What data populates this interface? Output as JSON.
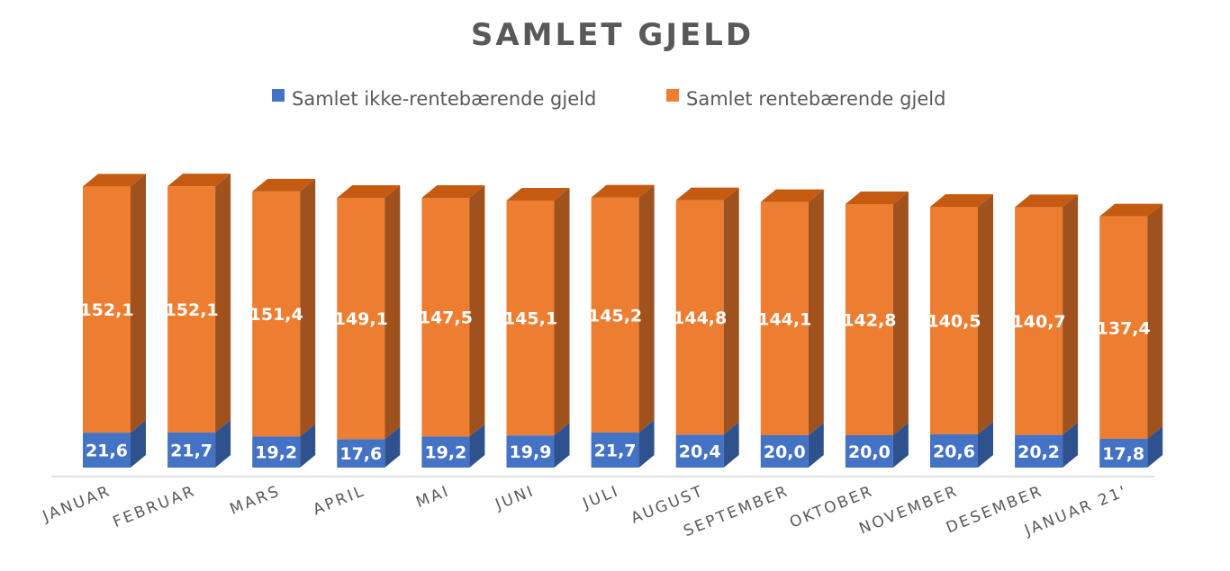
{
  "chart_data": {
    "type": "bar",
    "stacked": true,
    "three_d": true,
    "title": "SAMLET GJELD",
    "legend_position": "top",
    "grid": false,
    "categories": [
      "JANUAR",
      "FEBRUAR",
      "MARS",
      "APRIL",
      "MAI",
      "JUNI",
      "JULI",
      "AUGUST",
      "SEPTEMBER",
      "OKTOBER",
      "NOVEMBER",
      "DESEMBER",
      "JANUAR 21'"
    ],
    "series": [
      {
        "name": "Samlet ikke-rentebærende gjeld",
        "color": "#4472C4",
        "values": [
          21.6,
          21.7,
          19.2,
          17.6,
          19.2,
          19.9,
          21.7,
          20.4,
          20.0,
          20.0,
          20.6,
          20.2,
          17.8
        ],
        "labels": [
          "21,6",
          "21,7",
          "19,2",
          "17,6",
          "19,2",
          "19,9",
          "21,7",
          "20,4",
          "20,0",
          "20,0",
          "20,6",
          "20,2",
          "17,8"
        ]
      },
      {
        "name": "Samlet rentebærende gjeld",
        "color": "#ED7D31",
        "values": [
          152.1,
          152.1,
          151.4,
          149.1,
          147.5,
          145.1,
          145.2,
          144.8,
          144.1,
          142.8,
          140.5,
          140.7,
          137.4
        ],
        "labels": [
          "152,1",
          "152,1",
          "151,4",
          "149,1",
          "147,5",
          "145,1",
          "145,2",
          "144,8",
          "144,1",
          "142,8",
          "140,5",
          "140,7",
          "137,4"
        ]
      }
    ]
  }
}
